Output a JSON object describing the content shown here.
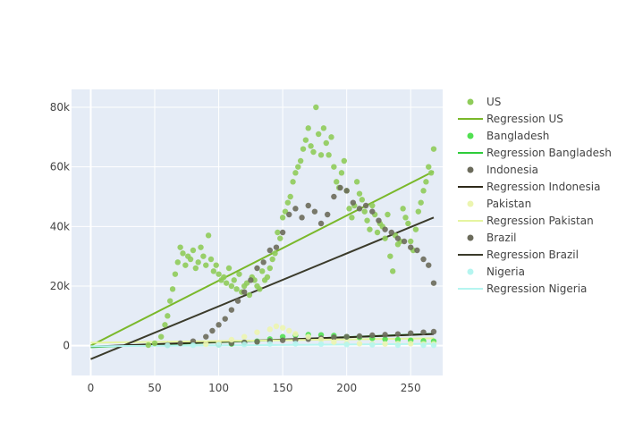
{
  "chart_data": {
    "type": "scatter",
    "title": "",
    "xlabel": "",
    "ylabel": "",
    "xlim": [
      -15,
      275
    ],
    "ylim": [
      -10000,
      86000
    ],
    "x_ticks": [
      0,
      50,
      100,
      150,
      200,
      250
    ],
    "x_tick_labels": [
      "0",
      "50",
      "100",
      "150",
      "200",
      "250"
    ],
    "y_ticks": [
      0,
      20000,
      40000,
      60000,
      80000
    ],
    "y_tick_labels": [
      "0",
      "20k",
      "40k",
      "60k",
      "80k"
    ],
    "grid": true,
    "legend_position": "right",
    "series": [
      {
        "name": "US",
        "color": "#8fcc5a",
        "x": [
          45,
          50,
          55,
          58,
          60,
          62,
          64,
          66,
          68,
          70,
          72,
          74,
          76,
          78,
          80,
          82,
          84,
          86,
          88,
          90,
          92,
          94,
          96,
          98,
          100,
          102,
          104,
          106,
          108,
          110,
          112,
          114,
          116,
          118,
          120,
          122,
          124,
          126,
          128,
          130,
          132,
          134,
          136,
          138,
          140,
          142,
          144,
          146,
          148,
          150,
          152,
          154,
          156,
          158,
          160,
          162,
          164,
          166,
          168,
          170,
          172,
          174,
          176,
          178,
          180,
          182,
          184,
          186,
          188,
          190,
          192,
          194,
          196,
          198,
          200,
          202,
          204,
          206,
          208,
          210,
          212,
          214,
          216,
          218,
          220,
          222,
          224,
          226,
          228,
          230,
          232,
          234,
          236,
          238,
          240,
          242,
          244,
          246,
          248,
          250,
          252,
          254,
          256,
          258,
          260,
          262,
          264,
          266,
          268
        ],
        "y": [
          200,
          800,
          3000,
          7000,
          10000,
          15000,
          19000,
          24000,
          28000,
          33000,
          31000,
          27000,
          30000,
          29000,
          32000,
          26000,
          28000,
          33000,
          30000,
          27000,
          37000,
          29000,
          25000,
          27000,
          24000,
          22000,
          23000,
          21000,
          26000,
          20000,
          22000,
          19000,
          24000,
          18000,
          20000,
          21000,
          17000,
          23000,
          22000,
          20000,
          19000,
          25000,
          22000,
          23000,
          26000,
          29000,
          31000,
          38000,
          36000,
          43000,
          45000,
          48000,
          50000,
          55000,
          58000,
          60000,
          62000,
          66000,
          69000,
          73000,
          67000,
          65000,
          80000,
          71000,
          64000,
          73000,
          68000,
          64000,
          70000,
          60000,
          55000,
          53000,
          58000,
          62000,
          52000,
          46000,
          43000,
          47000,
          55000,
          51000,
          49000,
          45000,
          42000,
          39000,
          47000,
          44000,
          38000,
          41000,
          40000,
          36000,
          44000,
          30000,
          25000,
          37000,
          34000,
          35000,
          46000,
          43000,
          41000,
          35000,
          32000,
          39000,
          45000,
          48000,
          52000,
          55000,
          60000,
          58000,
          66000
        ]
      },
      {
        "name": "Regression US",
        "mode": "line",
        "color": "#7ab82a",
        "x": [
          0,
          268
        ],
        "y": [
          0,
          58500
        ]
      },
      {
        "name": "Bangladesh",
        "color": "#52e052",
        "x": [
          100,
          110,
          120,
          130,
          140,
          150,
          160,
          170,
          180,
          190,
          200,
          210,
          220,
          230,
          240,
          250,
          260,
          268
        ],
        "y": [
          300,
          600,
          1000,
          1500,
          2200,
          3000,
          3500,
          3700,
          3600,
          3400,
          3000,
          2800,
          2500,
          2200,
          2000,
          1800,
          1600,
          1500
        ]
      },
      {
        "name": "Regression Bangladesh",
        "mode": "line",
        "color": "#2ecc3a",
        "x": [
          0,
          268
        ],
        "y": [
          -500,
          4000
        ]
      },
      {
        "name": "Indonesia",
        "color": "#6b6b5b",
        "x": [
          100,
          110,
          120,
          130,
          140,
          150,
          160,
          170,
          180,
          190,
          200,
          210,
          220,
          230,
          240,
          250,
          260,
          268
        ],
        "y": [
          500,
          800,
          1100,
          1300,
          1600,
          1800,
          2000,
          2200,
          2500,
          2800,
          3000,
          3200,
          3500,
          3700,
          3900,
          4200,
          4500,
          4700
        ]
      },
      {
        "name": "Regression Indonesia",
        "mode": "line",
        "color": "#2e2a1a",
        "x": [
          0,
          268
        ],
        "y": [
          -300,
          3900
        ]
      },
      {
        "name": "Pakistan",
        "color": "#ecf5b0",
        "x": [
          90,
          100,
          110,
          120,
          130,
          140,
          145,
          150,
          155,
          160,
          170,
          180,
          190,
          200,
          210,
          220,
          230,
          240,
          250,
          260,
          268
        ],
        "y": [
          500,
          1000,
          2000,
          3000,
          4500,
          5500,
          6500,
          6000,
          5000,
          4000,
          3000,
          2000,
          1200,
          800,
          700,
          600,
          600,
          700,
          700,
          600,
          600
        ]
      },
      {
        "name": "Regression Pakistan",
        "mode": "line",
        "color": "#e6f5a0",
        "x": [
          0,
          268
        ],
        "y": [
          1000,
          2500
        ]
      },
      {
        "name": "Brazil",
        "color": "#6b6b5b",
        "x": [
          60,
          70,
          80,
          90,
          95,
          100,
          105,
          110,
          115,
          120,
          125,
          130,
          135,
          140,
          145,
          150,
          155,
          160,
          165,
          170,
          175,
          180,
          185,
          190,
          195,
          200,
          205,
          210,
          215,
          220,
          225,
          230,
          235,
          240,
          245,
          250,
          255,
          260,
          264,
          268
        ],
        "y": [
          200,
          800,
          1500,
          3000,
          5000,
          7000,
          9000,
          12000,
          15000,
          18000,
          22000,
          26000,
          28000,
          32000,
          33000,
          38000,
          44000,
          46000,
          43000,
          47000,
          45000,
          41000,
          44000,
          50000,
          53000,
          52000,
          48000,
          46000,
          47000,
          45000,
          42000,
          39000,
          38000,
          36000,
          35000,
          33000,
          32000,
          29000,
          27000,
          21000
        ]
      },
      {
        "name": "Regression Brazil",
        "mode": "line",
        "color": "#3b3b2b",
        "x": [
          0,
          268
        ],
        "y": [
          -4500,
          43000
        ]
      },
      {
        "name": "Nigeria",
        "color": "#b5f5f0",
        "x": [
          60,
          80,
          100,
          120,
          140,
          160,
          180,
          200,
          220,
          240,
          260,
          268
        ],
        "y": [
          50,
          150,
          250,
          400,
          600,
          650,
          550,
          400,
          300,
          200,
          150,
          150
        ]
      },
      {
        "name": "Regression Nigeria",
        "mode": "line",
        "color": "#b5f5f0",
        "x": [
          0,
          268
        ],
        "y": [
          -200,
          600
        ]
      }
    ]
  }
}
